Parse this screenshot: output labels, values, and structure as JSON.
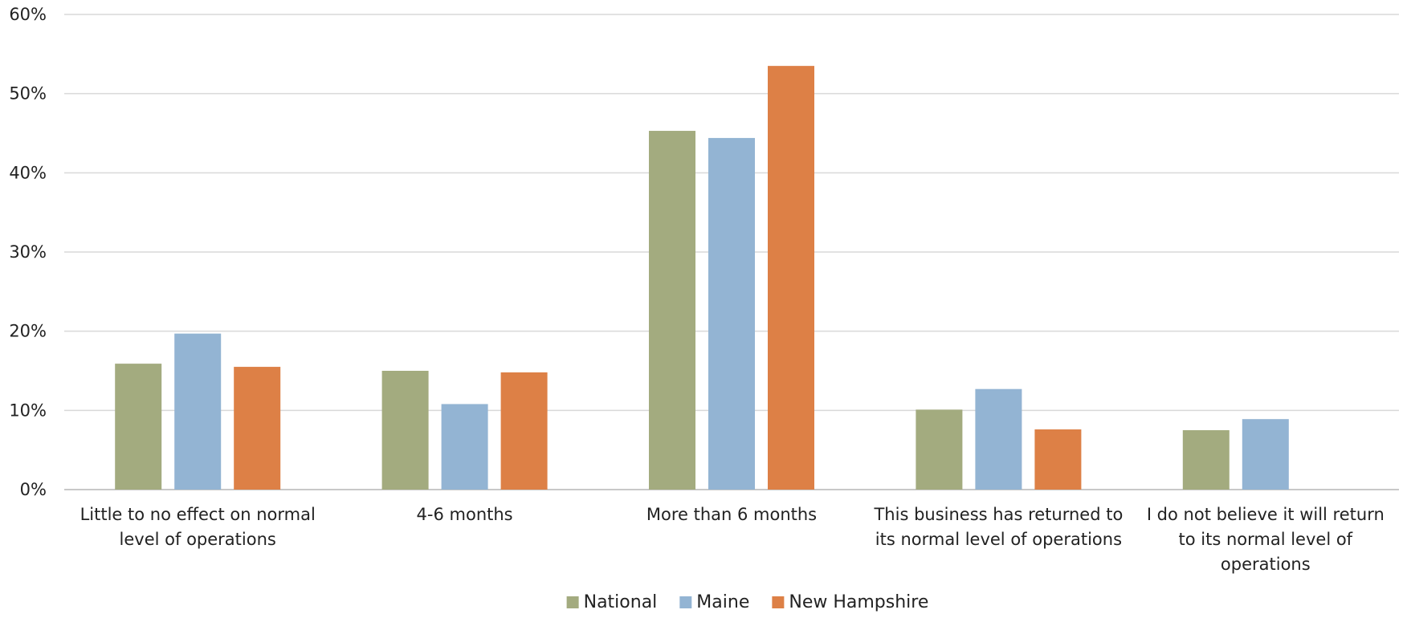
{
  "chart_data": {
    "type": "bar",
    "title": "",
    "xlabel": "",
    "ylabel": "",
    "ylim": [
      0,
      60
    ],
    "y_ticks": [
      "0%",
      "10%",
      "20%",
      "30%",
      "40%",
      "50%",
      "60%"
    ],
    "y_tick_values": [
      0,
      10,
      20,
      30,
      40,
      50,
      60
    ],
    "grid": true,
    "legend_position": "bottom",
    "categories": [
      [
        "Little to no effect on normal",
        "level of operations"
      ],
      [
        "4-6 months"
      ],
      [
        "More than 6 months"
      ],
      [
        "This business has returned to",
        "its normal level of operations"
      ],
      [
        "I do not believe it will return",
        "to its normal level of",
        "operations"
      ]
    ],
    "series": [
      {
        "name": "National",
        "color": "#a3ab7f",
        "values": [
          15.9,
          15.0,
          45.3,
          10.1,
          7.5
        ]
      },
      {
        "name": "Maine",
        "color": "#93b4d3",
        "values": [
          19.7,
          10.8,
          44.4,
          12.7,
          8.9
        ]
      },
      {
        "name": "New Hampshire",
        "color": "#dd8046",
        "values": [
          15.5,
          14.8,
          53.5,
          7.6,
          0
        ]
      }
    ]
  }
}
